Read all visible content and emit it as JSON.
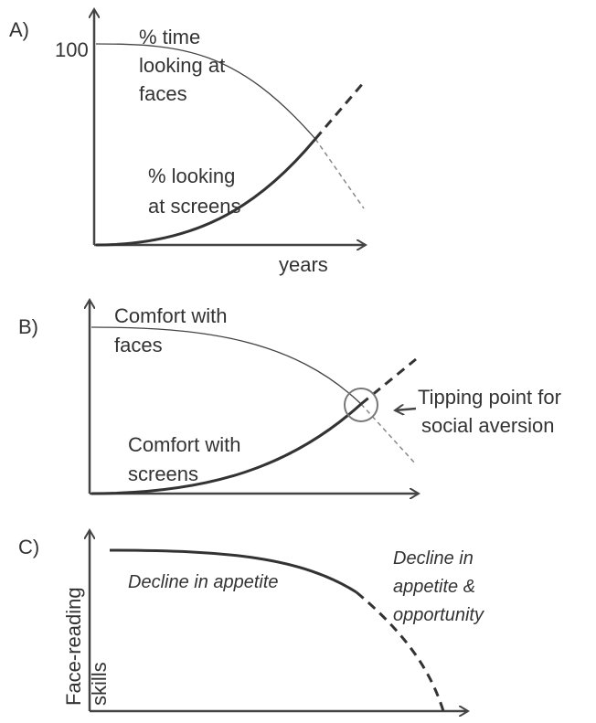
{
  "panels": [
    {
      "label": "A)",
      "y_tick": "100",
      "curve_1": [
        "% time",
        "looking at",
        "faces"
      ],
      "curve_2": [
        "% looking",
        "at screens"
      ],
      "x_axis_label": "years"
    },
    {
      "label": "B)",
      "curve_1": [
        "Comfort with",
        "faces"
      ],
      "curve_2": [
        "Comfort with",
        "screens"
      ],
      "annotation": [
        "Tipping point for",
        "social aversion"
      ]
    },
    {
      "label": "C)",
      "y_axis_label": [
        "Face-reading",
        "skills"
      ],
      "curve_1": [
        "Decline in appetite"
      ],
      "curve_2": [
        "Decline in",
        "appetite &",
        "opportunity"
      ]
    }
  ]
}
